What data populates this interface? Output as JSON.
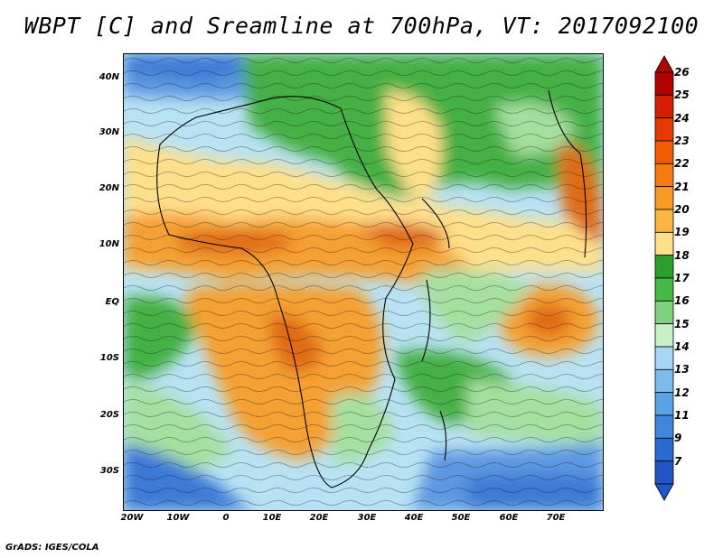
{
  "title": "WBPT [C] and Sreamline at 700hPa, VT: 2017092100",
  "footer": "GrADS: IGES/COLA",
  "y_axis_labels": [
    "40N",
    "30N",
    "20N",
    "10N",
    "EQ",
    "10S",
    "20S",
    "30S"
  ],
  "x_axis_labels": [
    "20W",
    "10W",
    "0",
    "10E",
    "20E",
    "30E",
    "40E",
    "50E",
    "60E",
    "70E"
  ],
  "colorbar": {
    "levels": [
      "26",
      "25",
      "24",
      "23",
      "22",
      "21",
      "20",
      "19",
      "18",
      "17",
      "16",
      "15",
      "14",
      "13",
      "12",
      "11",
      "9",
      "7"
    ],
    "colors": [
      "#b30000",
      "#d31e00",
      "#e63b00",
      "#f25c00",
      "#f57b10",
      "#f89a26",
      "#fbb540",
      "#ffe08a",
      "#2aa02a",
      "#46b846",
      "#7fd27f",
      "#c8f0c8",
      "#a7d7f5",
      "#7cbcec",
      "#5aa2e4",
      "#3f86dc",
      "#2a6bd2",
      "#1f55c4"
    ]
  },
  "map": {
    "description_colors": {
      "cool": "#3c79d6",
      "mild": "#b8e2f4",
      "green": "#44b044",
      "light_green": "#a6e0a0",
      "yellow": "#ffe08a",
      "orange": "#f5a033",
      "dark_orange": "#e06a12"
    }
  }
}
